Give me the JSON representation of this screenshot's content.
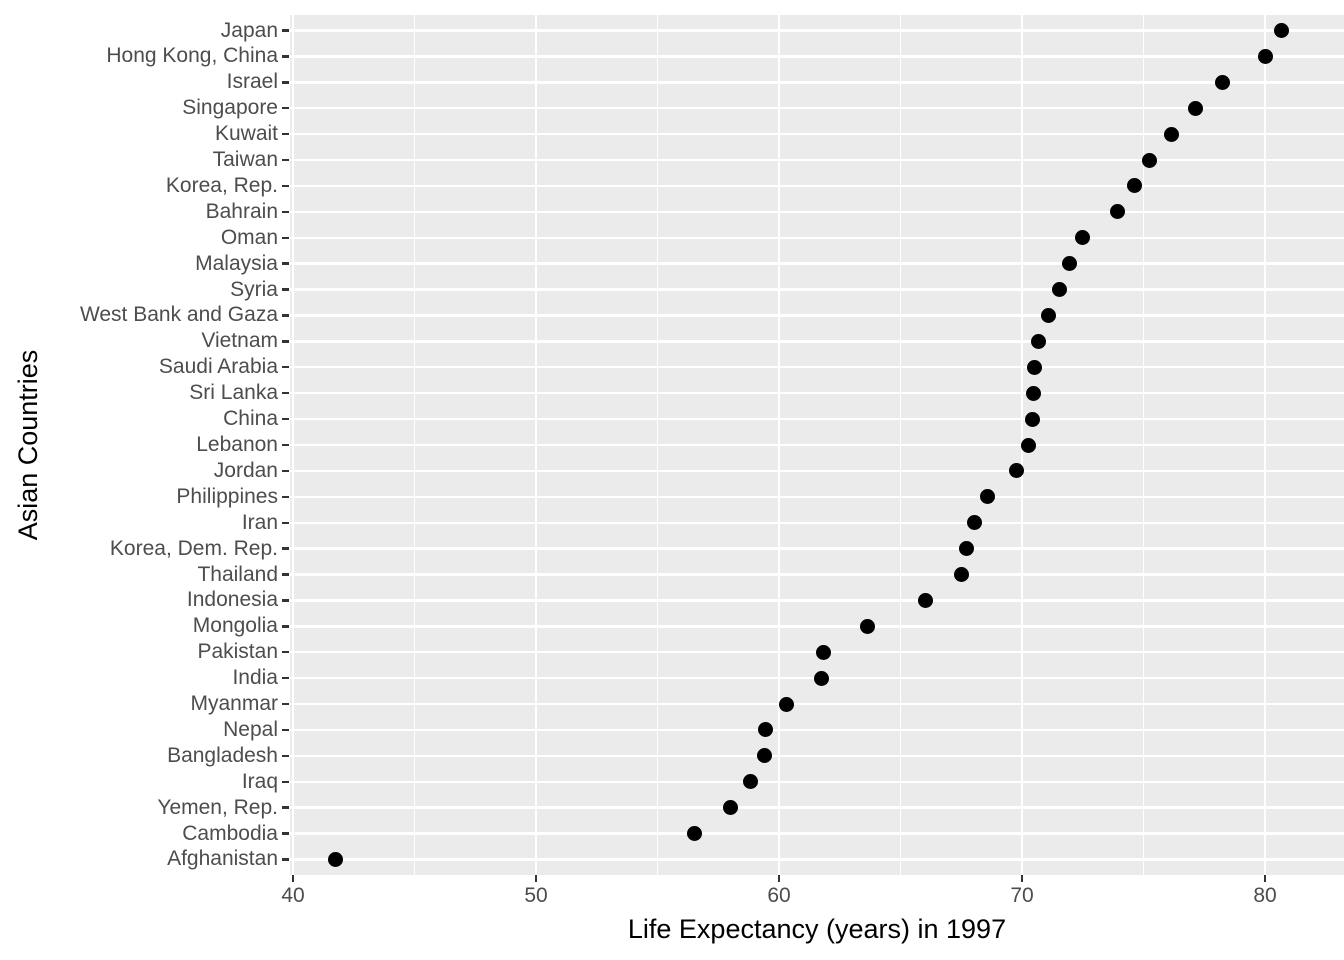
{
  "chart_data": {
    "type": "scatter",
    "title": "",
    "xlabel": "Life Expectancy (years) in 1997",
    "ylabel": "Asian Countries",
    "categories": [
      "Japan",
      "Hong Kong, China",
      "Israel",
      "Singapore",
      "Kuwait",
      "Taiwan",
      "Korea, Rep.",
      "Bahrain",
      "Oman",
      "Malaysia",
      "Syria",
      "West Bank and Gaza",
      "Vietnam",
      "Saudi Arabia",
      "Sri Lanka",
      "China",
      "Lebanon",
      "Jordan",
      "Philippines",
      "Iran",
      "Korea, Dem. Rep.",
      "Thailand",
      "Indonesia",
      "Mongolia",
      "Pakistan",
      "India",
      "Myanmar",
      "Nepal",
      "Bangladesh",
      "Iraq",
      "Yemen, Rep.",
      "Cambodia",
      "Afghanistan"
    ],
    "values": [
      80.69,
      80.0,
      78.269,
      77.158,
      76.156,
      75.25,
      74.647,
      73.925,
      72.499,
      71.938,
      71.527,
      71.096,
      70.672,
      70.533,
      70.457,
      70.426,
      70.265,
      69.772,
      68.564,
      68.042,
      67.727,
      67.521,
      66.041,
      63.625,
      61.818,
      61.765,
      60.328,
      59.426,
      59.412,
      58.811,
      58.02,
      56.534,
      41.763
    ],
    "xlim": [
      39.8,
      83.3
    ],
    "x_ticks": [
      40,
      50,
      60,
      70,
      80
    ],
    "x_tick_labels": [
      "40",
      "50",
      "60",
      "70",
      "80"
    ],
    "x_minor_ticks": [
      45,
      55,
      65,
      75
    ],
    "grid": true,
    "legend": false,
    "colors": {
      "panel_background": "#EBEBEB",
      "gridline": "#FFFFFF",
      "point": "#000000",
      "axis_text": "#4D4D4D",
      "axis_title": "#000000",
      "tick_mark": "#333333"
    }
  }
}
